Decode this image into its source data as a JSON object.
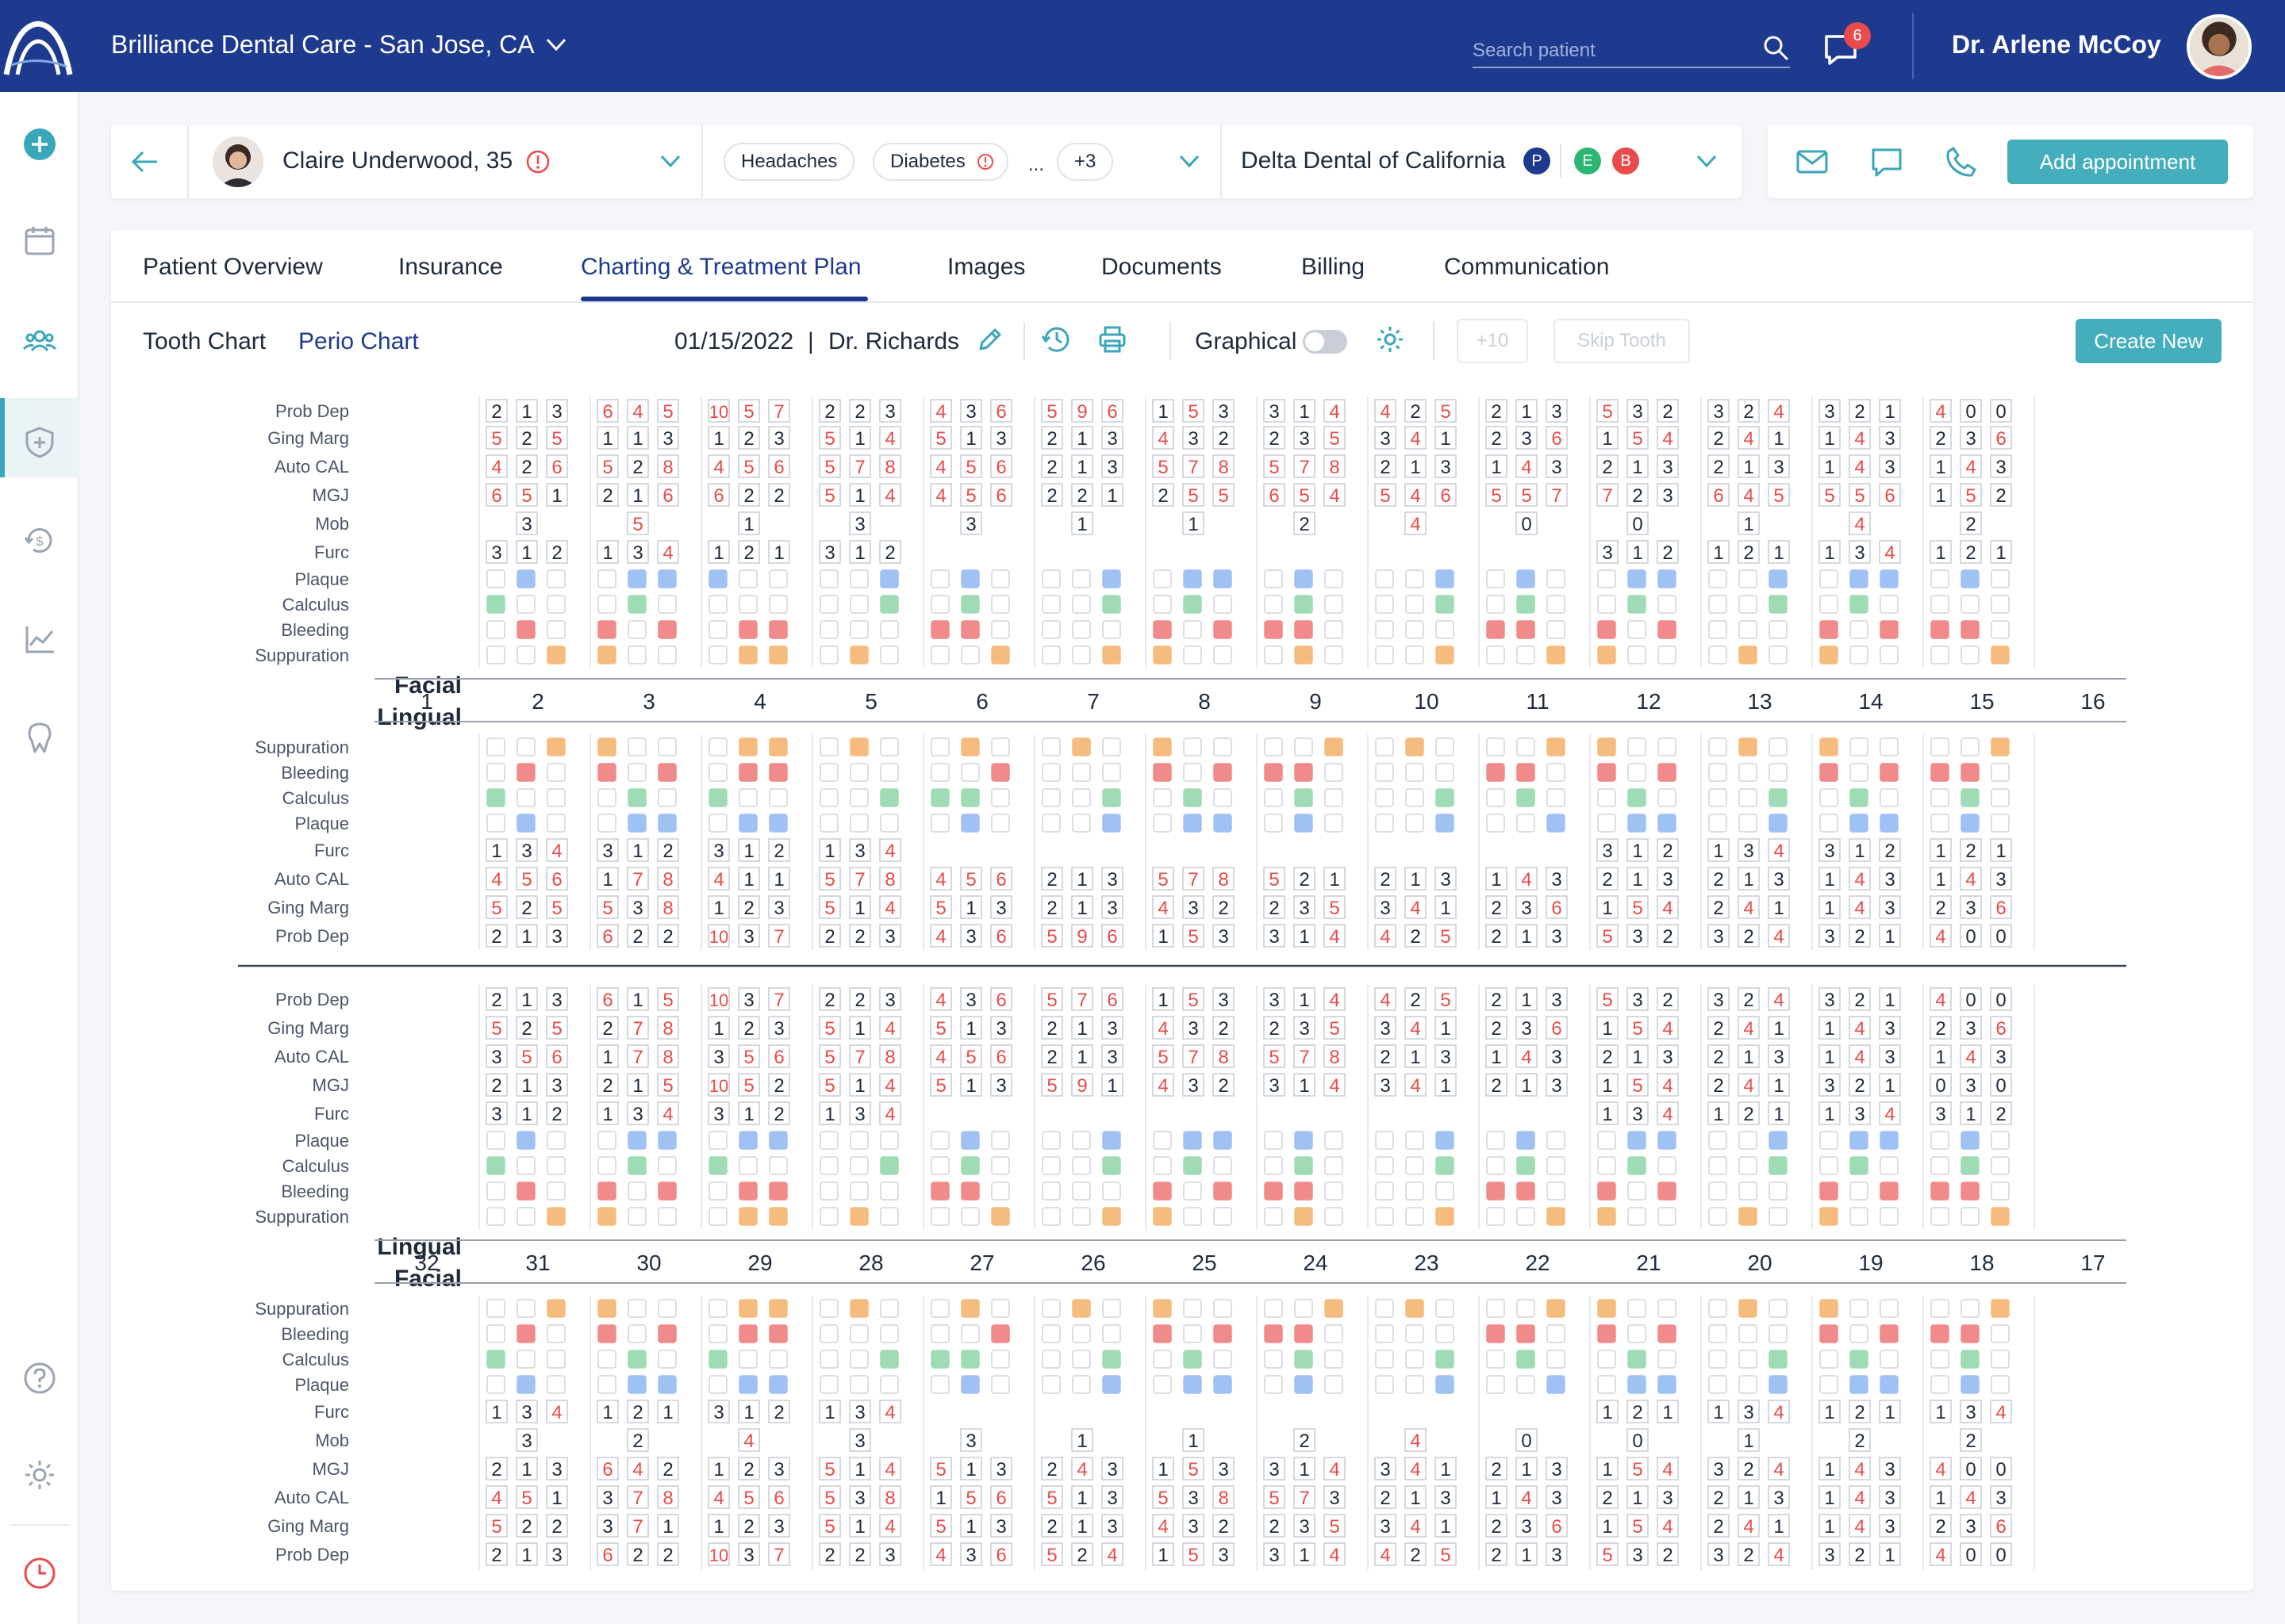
{
  "header": {
    "clinic": "Brilliance Dental Care - San Jose, CA",
    "search_placeholder": "Search patient",
    "chat_badge": "6",
    "user_name": "Dr. Arlene McCoy",
    "icons": [
      "logo-arch-icon",
      "chevron-down-icon",
      "search-icon",
      "chat-icon"
    ],
    "colors": {
      "topbar": "#1e3a8f",
      "accent": "#45aebd",
      "badge": "#e84b4b"
    }
  },
  "sidebar": {
    "items": [
      "add-icon",
      "calendar-icon",
      "patients-icon",
      "insurance-shield-icon",
      "billing-icon",
      "reports-chart-icon",
      "tooth-icon",
      "help-icon",
      "settings-gear-icon",
      "clock-icon"
    ],
    "active": "patients-icon"
  },
  "patient": {
    "name": "Claire Underwood, 35",
    "conditions": [
      "Headaches",
      "Diabetes"
    ],
    "more_dots": "...",
    "more_count": "+3",
    "insurance": "Delta Dental of California",
    "insurance_badges": [
      {
        "label": "P",
        "color": "#1e3a8f"
      },
      {
        "label": "E",
        "color": "#2bb673"
      },
      {
        "label": "B",
        "color": "#e84b4b"
      }
    ]
  },
  "actions": {
    "add_appointment": "Add appointment",
    "icons": [
      "mail-icon",
      "message-icon",
      "phone-icon"
    ]
  },
  "tabs": [
    "Patient Overview",
    "Insurance",
    "Charting & Treatment Plan",
    "Images",
    "Documents",
    "Billing",
    "Communication"
  ],
  "active_tab": "Charting & Treatment Plan",
  "toolbar": {
    "tooth_chart": "Tooth Chart",
    "perio_chart": "Perio Chart",
    "date": "01/15/2022",
    "pipe": "|",
    "doctor": "Dr. Richards",
    "graphical": "Graphical",
    "graphical_on": false,
    "plus10": "+10",
    "skip_tooth": "Skip Tooth",
    "create_new": "Create New"
  },
  "perio": {
    "labels": {
      "prob": "Prob Dep",
      "ging": "Ging Marg",
      "cal": "Auto CAL",
      "mgj": "MGJ",
      "mob": "Mob",
      "furc": "Furc",
      "plaque": "Plaque",
      "calculus": "Calculus",
      "bleeding": "Bleeding",
      "suppuration": "Suppuration",
      "facial": "Facial",
      "lingual": "Lingual"
    },
    "indicator_colors": {
      "plaque": "#a0c1f4",
      "calculus": "#9fdbb4",
      "bleeding": "#f18a8a",
      "suppuration": "#f6bb7f"
    },
    "upper": {
      "teeth": [
        "1",
        "2",
        "3",
        "4",
        "5",
        "6",
        "7",
        "8",
        "9",
        "10",
        "11",
        "12",
        "13",
        "14",
        "15",
        "16"
      ],
      "facial": {
        "prob": [
          null,
          "2 1 3",
          "6 4 5",
          "10 5 7",
          "2 2 3",
          "4 3 6",
          "5 9 6",
          "1 5 3",
          "3 1 4",
          "4 2 5",
          "2 1 3",
          "5 3 2",
          "3 2 4",
          "3 2 1",
          "4 0 0",
          null
        ],
        "ging": [
          null,
          "5 2 5",
          "1 1 3",
          "1 2 3",
          "5 1 4",
          "5 1 3",
          "2 1 3",
          "4 3 2",
          "2 3 5",
          "3 4 1",
          "2 3 6",
          "1 5 4",
          "2 4 1",
          "1 4 3",
          "2 3 6",
          null
        ],
        "cal": [
          null,
          "4 2 6",
          "5 2 8",
          "4 5 6",
          "5 7 8",
          "4 5 6",
          "2 1 3",
          "5 7 8",
          "5 7 8",
          "2 1 3",
          "1 4 3",
          "2 1 3",
          "2 1 3",
          "1 4 3",
          "1 4 3",
          null
        ],
        "mgj": [
          null,
          "6 5 1",
          "2 1 6",
          "6 2 2",
          "5 1 4",
          "4 5 6",
          "2 2 1",
          "2 5 5",
          "6 5 4",
          "5 4 6",
          "5 5 7",
          "7 2 3",
          "6 4 5",
          "5 5 6",
          "1 5 2",
          null
        ],
        "mob": [
          null,
          "3",
          "5",
          "1",
          "3",
          "3",
          "1",
          "1",
          "2",
          "4",
          "0",
          "0",
          "1",
          "4",
          "2",
          null
        ],
        "furc": [
          null,
          "3 1 2",
          "1 3 4",
          "1 2 1",
          "3 1 2",
          null,
          null,
          null,
          null,
          null,
          null,
          "3 1 2",
          "1 2 1",
          "1 3 4",
          "1 2 1",
          null
        ],
        "plaque": [
          null,
          "010",
          "011",
          "100",
          "001",
          "010",
          "001",
          "011",
          "010",
          "001",
          "010",
          "011",
          "001",
          "011",
          "010",
          null
        ],
        "calculus": [
          null,
          "100",
          "010",
          "000",
          "001",
          "010",
          "001",
          "010",
          "010",
          "001",
          "010",
          "010",
          "001",
          "010",
          "000",
          null
        ],
        "bleeding": [
          null,
          "010",
          "101",
          "011",
          "000",
          "110",
          "000",
          "101",
          "110",
          "000",
          "110",
          "101",
          "000",
          "101",
          "110",
          null
        ],
        "suppuration": [
          null,
          "001",
          "100",
          "011",
          "010",
          "001",
          "001",
          "100",
          "010",
          "001",
          "001",
          "100",
          "010",
          "100",
          "001",
          null
        ]
      },
      "lingual": {
        "suppuration": [
          null,
          "001",
          "100",
          "011",
          "010",
          "010",
          "010",
          "100",
          "001",
          "010",
          "001",
          "100",
          "010",
          "100",
          "001",
          null
        ],
        "bleeding": [
          null,
          "010",
          "101",
          "011",
          "000",
          "001",
          "000",
          "101",
          "110",
          "000",
          "110",
          "101",
          "000",
          "101",
          "110",
          null
        ],
        "calculus": [
          null,
          "100",
          "010",
          "100",
          "001",
          "110",
          "001",
          "010",
          "010",
          "001",
          "010",
          "010",
          "001",
          "010",
          "010",
          null
        ],
        "plaque": [
          null,
          "010",
          "011",
          "011",
          "000",
          "010",
          "001",
          "011",
          "010",
          "001",
          "001",
          "011",
          "001",
          "011",
          "010",
          null
        ],
        "furc": [
          null,
          "1 3 4",
          "3 1 2",
          "3 1 2",
          "1 3 4",
          null,
          null,
          null,
          null,
          null,
          null,
          "3 1 2",
          "1 3 4",
          "3 1 2",
          "1 2 1",
          null
        ],
        "cal": [
          null,
          "4 5 6",
          "1 7 8",
          "4 1 1",
          "5 7 8",
          "4 5 6",
          "2 1 3",
          "5 7 8",
          "5 2 1",
          "2 1 3",
          "1 4 3",
          "2 1 3",
          "2 1 3",
          "1 4 3",
          "1 4 3",
          null
        ],
        "ging": [
          null,
          "5 2 5",
          "5 3 8",
          "1 2 3",
          "5 1 4",
          "5 1 3",
          "2 1 3",
          "4 3 2",
          "2 3 5",
          "3 4 1",
          "2 3 6",
          "1 5 4",
          "2 4 1",
          "1 4 3",
          "2 3 6",
          null
        ],
        "prob": [
          null,
          "2 1 3",
          "6 2 2",
          "10 3 7",
          "2 2 3",
          "4 3 6",
          "5 9 6",
          "1 5 3",
          "3 1 4",
          "4 2 5",
          "2 1 3",
          "5 3 2",
          "3 2 4",
          "3 2 1",
          "4 0 0",
          null
        ]
      }
    },
    "lower": {
      "teeth": [
        "32",
        "31",
        "30",
        "29",
        "28",
        "27",
        "26",
        "25",
        "24",
        "23",
        "22",
        "21",
        "20",
        "19",
        "18",
        "17"
      ],
      "lingual": {
        "prob": [
          null,
          "2 1 3",
          "6 1 5",
          "10 3 7",
          "2 2 3",
          "4 3 6",
          "5 7 6",
          "1 5 3",
          "3 1 4",
          "4 2 5",
          "2 1 3",
          "5 3 2",
          "3 2 4",
          "3 2 1",
          "4 0 0",
          null
        ],
        "ging": [
          null,
          "5 2 5",
          "2 7 8",
          "1 2 3",
          "5 1 4",
          "5 1 3",
          "2 1 3",
          "4 3 2",
          "2 3 5",
          "3 4 1",
          "2 3 6",
          "1 5 4",
          "2 4 1",
          "1 4 3",
          "2 3 6",
          null
        ],
        "cal": [
          null,
          "3 5 6",
          "1 7 8",
          "3 5 6",
          "5 7 8",
          "4 5 6",
          "2 1 3",
          "5 7 8",
          "5 7 8",
          "2 1 3",
          "1 4 3",
          "2 1 3",
          "2 1 3",
          "1 4 3",
          "1 4 3",
          null
        ],
        "mgj": [
          null,
          "2 1 3",
          "2 1 5",
          "10 5 2",
          "5 1 4",
          "5 1 3",
          "5 9 1",
          "4 3 2",
          "3 1 4",
          "3 4 1",
          "2 1 3",
          "1 5 4",
          "2 4 1",
          "3 2 1",
          "0 3 0",
          null
        ],
        "furc": [
          null,
          "3 1 2",
          "1 3 4",
          "3 1 2",
          "1 3 4",
          null,
          null,
          null,
          null,
          null,
          null,
          "1 3 4",
          "1 2 1",
          "1 3 4",
          "3 1 2",
          null
        ],
        "plaque": [
          null,
          "010",
          "011",
          "011",
          "000",
          "010",
          "001",
          "011",
          "010",
          "001",
          "010",
          "011",
          "001",
          "011",
          "010",
          null
        ],
        "calculus": [
          null,
          "100",
          "010",
          "100",
          "001",
          "010",
          "001",
          "010",
          "010",
          "001",
          "010",
          "010",
          "001",
          "010",
          "010",
          null
        ],
        "bleeding": [
          null,
          "010",
          "101",
          "011",
          "000",
          "110",
          "000",
          "101",
          "110",
          "000",
          "110",
          "101",
          "000",
          "101",
          "110",
          null
        ],
        "suppuration": [
          null,
          "001",
          "100",
          "011",
          "010",
          "001",
          "001",
          "100",
          "010",
          "001",
          "001",
          "100",
          "010",
          "100",
          "001",
          null
        ]
      },
      "facial": {
        "suppuration": [
          null,
          "001",
          "100",
          "011",
          "010",
          "010",
          "010",
          "100",
          "001",
          "010",
          "001",
          "100",
          "010",
          "100",
          "001",
          null
        ],
        "bleeding": [
          null,
          "010",
          "101",
          "011",
          "000",
          "001",
          "000",
          "101",
          "110",
          "000",
          "110",
          "101",
          "000",
          "101",
          "110",
          null
        ],
        "calculus": [
          null,
          "100",
          "010",
          "100",
          "001",
          "110",
          "001",
          "010",
          "010",
          "001",
          "010",
          "010",
          "001",
          "010",
          "010",
          null
        ],
        "plaque": [
          null,
          "010",
          "011",
          "011",
          "000",
          "010",
          "001",
          "011",
          "010",
          "001",
          "001",
          "011",
          "001",
          "011",
          "010",
          null
        ],
        "furc": [
          null,
          "1 3 4",
          "1 2 1",
          "3 1 2",
          "1 3 4",
          null,
          null,
          null,
          null,
          null,
          null,
          "1 2 1",
          "1 3 4",
          "1 2 1",
          "1 3 4",
          null
        ],
        "mob": [
          null,
          "3",
          "2",
          "4",
          "3",
          "3",
          "1",
          "1",
          "2",
          "4",
          "0",
          "0",
          "1",
          "2",
          "2",
          null
        ],
        "mgj": [
          null,
          "2 1 3",
          "6 4 2",
          "1 2 3",
          "5 1 4",
          "5 1 3",
          "2 4 3",
          "1 5 3",
          "3 1 4",
          "3 4 1",
          "2 1 3",
          "1 5 4",
          "3 2 4",
          "1 4 3",
          "4 0 0",
          null
        ],
        "cal": [
          null,
          "4 5 1",
          "3 7 8",
          "4 5 6",
          "5 3 8",
          "1 5 6",
          "5 1 3",
          "5 3 8",
          "5 7 3",
          "2 1 3",
          "1 4 3",
          "2 1 3",
          "2 1 3",
          "1 4 3",
          "1 4 3",
          null
        ],
        "ging": [
          null,
          "5 2 2",
          "3 7 1",
          "1 2 3",
          "5 1 4",
          "5 1 3",
          "2 1 3",
          "4 3 2",
          "2 3 5",
          "3 4 1",
          "2 3 6",
          "1 5 4",
          "2 4 1",
          "1 4 3",
          "2 3 6",
          null
        ],
        "prob": [
          null,
          "2 1 3",
          "6 2 2",
          "10 3 7",
          "2 2 3",
          "4 3 6",
          "5 2 4",
          "1 5 3",
          "3 1 4",
          "4 2 5",
          "2 1 3",
          "5 3 2",
          "3 2 4",
          "3 2 1",
          "4 0 0",
          null
        ]
      }
    }
  }
}
